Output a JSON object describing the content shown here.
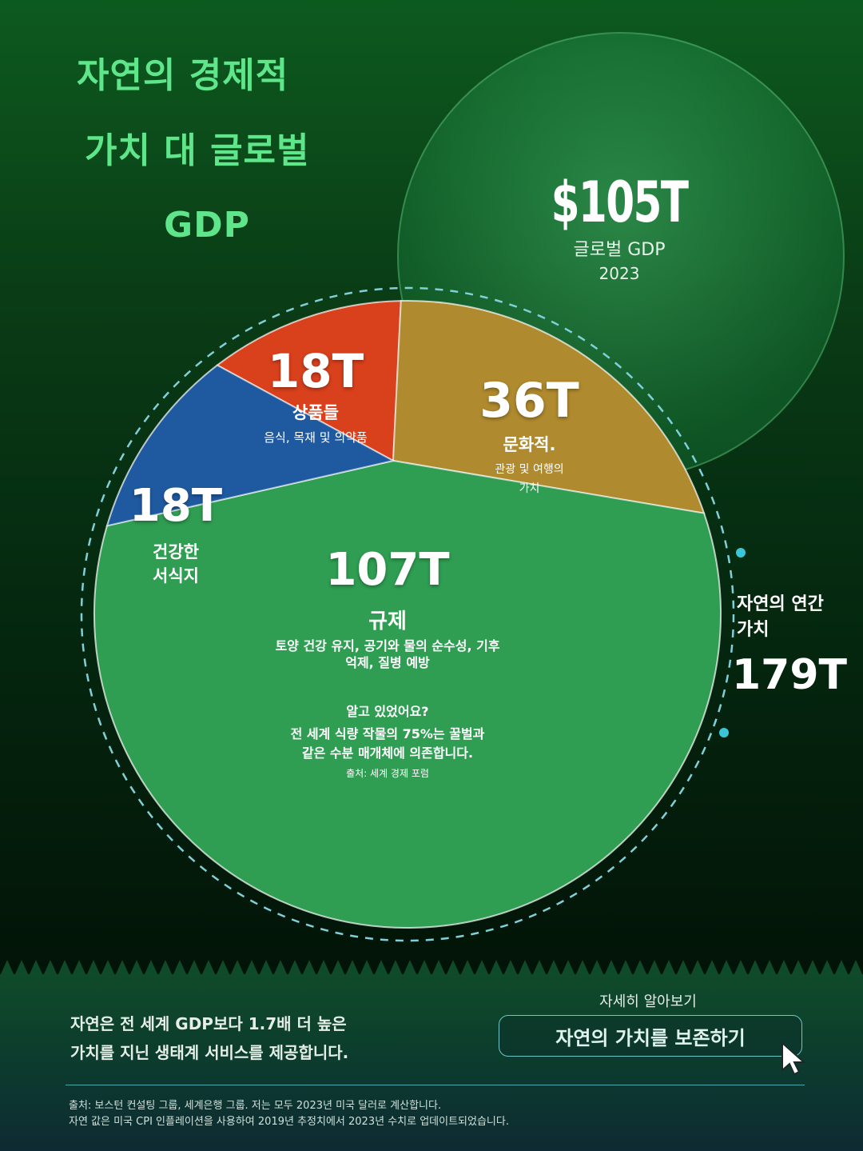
{
  "title": {
    "line1": "자연의 경제적",
    "line2": "가치 대 글로벌",
    "line3": "GDP"
  },
  "gdp": {
    "value": "$105T",
    "label": "글로벌 GDP",
    "year": "2023"
  },
  "total": {
    "label_line1": "자연의 연간",
    "label_line2": "가치",
    "value": "179T"
  },
  "chart_data": {
    "type": "pie",
    "title": "자연의 경제적 가치 대 글로벌 GDP",
    "unit": "T USD",
    "categories": [
      "상품들",
      "문화적.",
      "규제",
      "건강한 서식지"
    ],
    "values": [
      18,
      36,
      107,
      18
    ],
    "total": 179,
    "comparison": {
      "label": "글로벌 GDP",
      "year": 2023,
      "value": 105
    }
  },
  "slices": [
    {
      "value_label": "18T",
      "name": "상품들",
      "desc": "음식, 목재 및 의약품",
      "color": "#d9401c"
    },
    {
      "value_label": "36T",
      "name": "문화적.",
      "desc1": "관광 및 여행의",
      "desc2": "가치",
      "color": "#b08a2e"
    },
    {
      "value_label": "107T",
      "name": "규제",
      "desc1": "토양 건강 유지, 공기와 물의 순수성, 기후",
      "desc2": "억제, 질병 예방",
      "color": "#2f9e52"
    },
    {
      "value_label": "18T",
      "name1": "건강한",
      "name2": "서식지",
      "color": "#1f5aa0"
    }
  ],
  "fact": {
    "heading": "알고 있었어요?",
    "line1": "전 세계 식량 작물의 75%는 꿀벌과",
    "line2": "같은 수분 매개체에 의존합니다.",
    "source": "출처: 세계 경제 포럼"
  },
  "bottom": {
    "desc_line1": "자연은 전 세계 GDP보다 1.7배 더 높은",
    "desc_line2": "가치를 지닌 생태계 서비스를 제공합니다.",
    "learn_more": "자세히 알아보기",
    "cta": "자연의 가치를 보존하기",
    "source_line1": "출처: 보스턴 컨설팅 그룹, 세계은행 그룹. 저는 모두 2023년 미국 달러로 계산합니다.",
    "source_line2": "자연 값은 미국 CPI 인플레이션을 사용하여 2019년 추정치에서 2023년 수치로 업데이트되었습니다."
  }
}
